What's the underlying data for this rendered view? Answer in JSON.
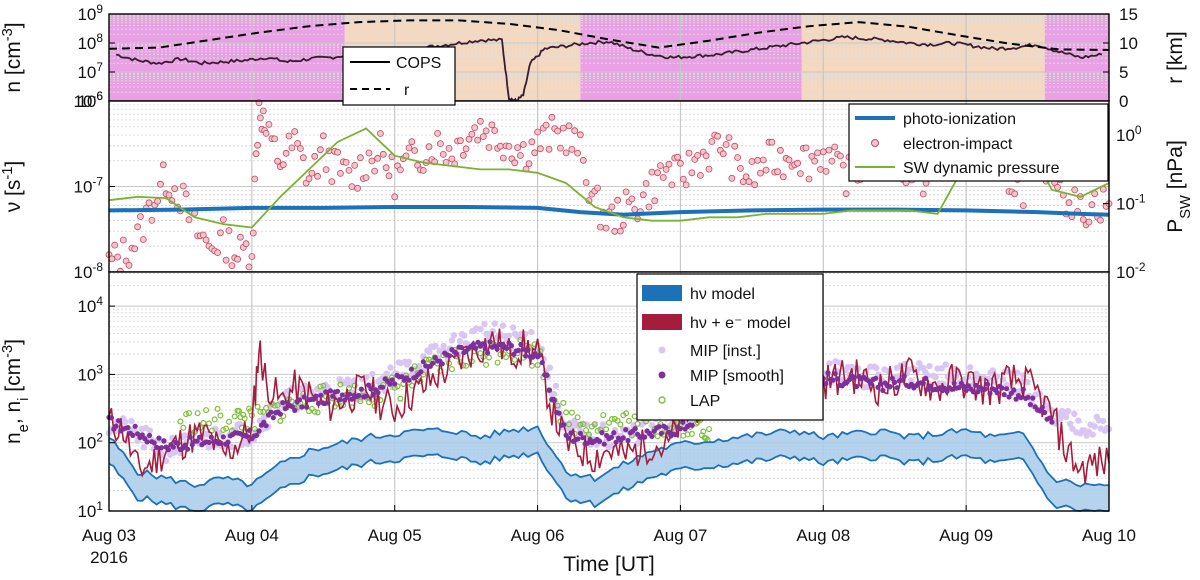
{
  "chart_data": [
    {
      "id": "top",
      "type": "line",
      "ylabel_left": "n [cm^-3]",
      "ylabel_right": "r [km]",
      "ylim_left_log10": [
        6,
        9
      ],
      "ylim_right": [
        0,
        15
      ],
      "yticks_left": [
        "10^6",
        "10^7",
        "10^8",
        "10^9"
      ],
      "yticks_right": [
        "0",
        "5",
        "10",
        "15"
      ],
      "background_bands": [
        {
          "from": 0,
          "to": 1.65,
          "color": "#e9a0e4"
        },
        {
          "from": 1.65,
          "to": 3.3,
          "color": "#f4d8bf"
        },
        {
          "from": 3.3,
          "to": 4.85,
          "color": "#e9a0e4"
        },
        {
          "from": 4.85,
          "to": 6.55,
          "color": "#f4d8bf"
        },
        {
          "from": 6.55,
          "to": 7.0,
          "color": "#e9a0e4"
        }
      ],
      "legend": [
        "COPS",
        "r"
      ],
      "series": [
        {
          "name": "COPS",
          "style": "solid",
          "color": "#3a1b2f",
          "axis": "left",
          "x": [
            0.05,
            0.2,
            0.35,
            0.5,
            0.65,
            0.8,
            0.95,
            1.1,
            1.25,
            1.4,
            1.55,
            1.7,
            1.85,
            2.0,
            2.15,
            2.3,
            2.45,
            2.6,
            2.75,
            2.8,
            2.85,
            2.9,
            2.95,
            3.05,
            3.2,
            3.35,
            3.5,
            3.65,
            3.8,
            3.95,
            4.1,
            4.25,
            4.4,
            4.55,
            4.7,
            4.85,
            5.0,
            5.15,
            5.3,
            5.45,
            5.6,
            5.75,
            5.9,
            6.05,
            6.2,
            6.35,
            6.5,
            6.65,
            6.8,
            6.95
          ],
          "y_log10": [
            7.6,
            7.4,
            7.3,
            7.45,
            7.3,
            7.35,
            7.4,
            7.5,
            7.35,
            7.45,
            7.5,
            7.6,
            7.7,
            7.75,
            7.8,
            7.9,
            8.0,
            8.1,
            8.1,
            6.1,
            6.0,
            6.2,
            7.3,
            7.8,
            7.9,
            8.0,
            8.05,
            7.8,
            7.6,
            7.5,
            7.55,
            7.6,
            7.7,
            7.8,
            7.9,
            8.0,
            8.1,
            8.2,
            8.15,
            8.1,
            8.0,
            7.95,
            8.0,
            7.9,
            7.8,
            7.85,
            7.95,
            7.7,
            7.5,
            7.6
          ]
        },
        {
          "name": "r",
          "style": "dashed",
          "color": "#000000",
          "axis": "right",
          "x": [
            0.0,
            0.35,
            0.7,
            1.05,
            1.4,
            1.75,
            2.1,
            2.45,
            2.8,
            3.15,
            3.5,
            3.85,
            4.2,
            4.55,
            4.9,
            5.25,
            5.6,
            5.95,
            6.3,
            6.65,
            7.0
          ],
          "y": [
            9.0,
            9.2,
            10.5,
            11.8,
            12.9,
            13.6,
            13.9,
            13.9,
            13.3,
            12.2,
            10.6,
            9.2,
            10.4,
            11.8,
            12.9,
            13.6,
            12.8,
            11.3,
            9.9,
            8.9,
            8.8
          ]
        }
      ]
    },
    {
      "id": "middle",
      "type": "line+scatter",
      "ylabel_left": "ν [s^-1]",
      "ylabel_right": "P_SW [nPa]",
      "ylim_left_log10": [
        -8,
        -6
      ],
      "ylim_right_log10": [
        -2,
        0.5
      ],
      "yticks_left": [
        "10^-8",
        "10^-7",
        "10^-6"
      ],
      "yticks_right": [
        "10^-2",
        "10^-1",
        "10^0"
      ],
      "legend": [
        "photo-ionization",
        "electron-impact",
        "SW dynamic pressure"
      ],
      "series": [
        {
          "name": "photo-ionization",
          "color": "#1b72b8",
          "axis": "left",
          "x": [
            0.0,
            0.5,
            1.0,
            1.5,
            2.0,
            2.5,
            3.0,
            3.3,
            3.6,
            4.0,
            4.5,
            5.0,
            5.5,
            6.0,
            6.5,
            6.8,
            7.0
          ],
          "y_log10": [
            -7.28,
            -7.27,
            -7.25,
            -7.25,
            -7.24,
            -7.24,
            -7.25,
            -7.3,
            -7.33,
            -7.3,
            -7.28,
            -7.27,
            -7.27,
            -7.28,
            -7.3,
            -7.32,
            -7.33
          ]
        },
        {
          "name": "electron-impact",
          "color": "#c44a63",
          "fill": "#f2c5cc",
          "axis": "left",
          "x": [
            0.0,
            0.1,
            0.2,
            0.3,
            0.4,
            0.5,
            0.6,
            0.7,
            0.8,
            0.9,
            1.0,
            1.05,
            1.1,
            1.2,
            1.3,
            1.4,
            1.5,
            1.6,
            1.7,
            1.8,
            1.9,
            2.0,
            2.1,
            2.2,
            2.3,
            2.4,
            2.5,
            2.6,
            2.7,
            2.8,
            2.9,
            3.0,
            3.1,
            3.2,
            3.3,
            3.4,
            3.5,
            3.6,
            3.7,
            3.8,
            3.9,
            4.0,
            4.1,
            4.2,
            4.3,
            4.4,
            4.5,
            4.6,
            4.7,
            4.8,
            4.9,
            5.0,
            5.1,
            5.2,
            5.3,
            5.4,
            5.5,
            5.6,
            5.7,
            5.8,
            5.9,
            6.0,
            6.1,
            6.2,
            6.3,
            6.4,
            6.5,
            6.6,
            6.7,
            6.8,
            6.9,
            7.0
          ],
          "y_log10": [
            -7.9,
            -7.8,
            -7.6,
            -7.2,
            -6.9,
            -7.1,
            -7.5,
            -7.7,
            -7.6,
            -7.8,
            -7.7,
            -6.0,
            -6.4,
            -6.7,
            -6.5,
            -6.9,
            -6.6,
            -6.8,
            -6.9,
            -6.7,
            -6.6,
            -6.9,
            -6.7,
            -6.6,
            -6.5,
            -6.6,
            -6.4,
            -6.3,
            -6.4,
            -6.5,
            -6.6,
            -6.5,
            -6.4,
            -6.4,
            -6.6,
            -7.2,
            -7.4,
            -7.3,
            -7.2,
            -7.0,
            -6.8,
            -6.9,
            -6.7,
            -6.6,
            -6.5,
            -6.8,
            -6.9,
            -6.7,
            -6.7,
            -6.6,
            -6.7,
            -6.6,
            -6.8,
            -6.9,
            -6.7,
            -6.6,
            -6.7,
            -6.8,
            -6.9,
            -6.8,
            -6.7,
            -6.6,
            -6.7,
            -6.8,
            -6.9,
            -7.0,
            -6.8,
            -6.7,
            -7.1,
            -7.3,
            -7.2,
            -7.2
          ]
        },
        {
          "name": "SW dynamic pressure",
          "color": "#78b432",
          "axis": "right",
          "x": [
            0.0,
            0.2,
            0.4,
            0.6,
            0.8,
            1.0,
            1.2,
            1.4,
            1.6,
            1.8,
            2.0,
            2.2,
            2.4,
            2.6,
            2.8,
            3.0,
            3.2,
            3.4,
            3.6,
            3.8,
            4.0,
            4.2,
            4.4,
            4.6,
            4.8,
            5.0,
            5.2,
            5.4,
            5.6,
            5.8,
            6.0,
            6.2,
            6.4,
            6.5,
            6.6,
            6.8,
            7.0
          ],
          "y_log10": [
            -0.95,
            -0.9,
            -0.92,
            -1.2,
            -1.3,
            -1.35,
            -0.9,
            -0.5,
            -0.1,
            0.1,
            -0.3,
            -0.4,
            -0.45,
            -0.5,
            -0.5,
            -0.55,
            -0.7,
            -1.05,
            -1.2,
            -1.25,
            -1.25,
            -1.2,
            -1.2,
            -1.15,
            -1.15,
            -1.15,
            -1.1,
            -1.1,
            -1.1,
            -1.15,
            -0.4,
            -0.4,
            -0.4,
            -0.4,
            -0.8,
            -0.9,
            -0.7
          ]
        }
      ]
    },
    {
      "id": "bottom",
      "type": "line+scatter",
      "ylabel_left": "n_e, n_i [cm^-3]",
      "ylim_left_log10": [
        1,
        4.5
      ],
      "yticks_left": [
        "10^1",
        "10^2",
        "10^3",
        "10^4"
      ],
      "xlim": [
        0,
        7
      ],
      "xticks": [
        "Aug 03",
        "Aug 04",
        "Aug 05",
        "Aug 06",
        "Aug 07",
        "Aug 08",
        "Aug 09",
        "Aug 10"
      ],
      "xlabel": "Time [UT]",
      "xlabel_extra": "2016",
      "legend": [
        "hν model",
        "hν + e⁻ model",
        "MIP [inst.]",
        "MIP [smooth]",
        "LAP"
      ],
      "series": [
        {
          "name": "hν model",
          "color": "#1b72b8",
          "band": "#a9cbeb",
          "x": [
            0.0,
            0.2,
            0.4,
            0.6,
            0.8,
            1.0,
            1.2,
            1.4,
            1.6,
            1.8,
            2.0,
            2.2,
            2.4,
            2.6,
            2.8,
            3.0,
            3.2,
            3.4,
            3.6,
            3.8,
            4.0,
            4.2,
            4.4,
            4.6,
            4.8,
            5.0,
            5.2,
            5.4,
            5.6,
            5.8,
            6.0,
            6.2,
            6.4,
            6.6,
            6.8,
            7.0
          ],
          "y_log10": [
            1.9,
            1.4,
            1.3,
            1.2,
            1.3,
            1.2,
            1.5,
            1.7,
            1.8,
            1.9,
            1.95,
            2.0,
            2.0,
            1.9,
            2.0,
            2.05,
            1.4,
            1.3,
            1.5,
            1.7,
            1.8,
            1.85,
            1.9,
            1.95,
            2.0,
            1.9,
            1.95,
            2.0,
            1.9,
            1.95,
            2.0,
            1.9,
            1.95,
            1.3,
            1.2,
            1.2
          ]
        },
        {
          "name": "hν + e⁻ model",
          "color": "#a51d3c",
          "x": [
            0.0,
            0.1,
            0.2,
            0.3,
            0.4,
            0.5,
            0.6,
            0.7,
            0.8,
            0.9,
            1.0,
            1.05,
            1.1,
            1.2,
            1.3,
            1.4,
            1.5,
            1.6,
            1.7,
            1.8,
            1.9,
            2.0,
            2.1,
            2.2,
            2.3,
            2.4,
            2.5,
            2.6,
            2.7,
            2.8,
            2.9,
            3.0,
            3.1,
            3.2,
            3.3,
            3.4,
            3.5,
            3.6,
            3.7,
            3.8,
            3.9,
            4.0,
            4.1,
            4.2,
            4.3,
            4.4,
            4.5,
            4.6,
            4.7,
            4.8,
            4.9,
            5.0,
            5.1,
            5.2,
            5.3,
            5.4,
            5.5,
            5.6,
            5.7,
            5.8,
            5.9,
            6.0,
            6.1,
            6.2,
            6.3,
            6.4,
            6.5,
            6.6,
            6.7,
            6.8,
            6.9,
            7.0
          ],
          "y_log10": [
            2.3,
            2.2,
            1.6,
            1.7,
            1.9,
            2.0,
            2.1,
            2.1,
            1.8,
            2.0,
            2.2,
            3.4,
            2.9,
            2.6,
            2.8,
            2.7,
            2.5,
            2.6,
            2.7,
            2.8,
            2.6,
            2.5,
            2.7,
            2.8,
            3.0,
            3.1,
            3.3,
            3.4,
            3.5,
            3.3,
            3.4,
            3.3,
            2.5,
            2.0,
            1.9,
            1.8,
            1.9,
            1.8,
            1.9,
            2.0,
            1.9,
            2.3,
            2.5,
            2.8,
            2.9,
            3.1,
            3.0,
            2.9,
            3.0,
            3.1,
            3.0,
            2.9,
            2.95,
            3.0,
            2.9,
            2.8,
            2.9,
            3.0,
            2.9,
            2.8,
            2.9,
            2.9,
            2.8,
            2.8,
            2.9,
            2.9,
            2.7,
            2.4,
            1.9,
            1.6,
            1.7,
            1.7
          ]
        },
        {
          "name": "MIP [inst.]",
          "color": "#d9c6f2",
          "x": [
            0.0,
            0.2,
            0.4,
            0.6,
            0.8,
            1.0,
            1.2,
            1.4,
            1.6,
            1.8,
            2.0,
            2.2,
            2.4,
            2.6,
            2.8,
            3.0,
            3.2,
            3.4,
            3.6,
            3.8,
            4.0,
            4.2,
            4.4,
            4.6,
            4.8,
            5.0,
            5.2,
            5.4,
            5.6,
            5.8,
            6.0,
            6.2,
            6.4,
            6.6,
            6.8,
            7.0
          ],
          "y_log10": [
            2.3,
            2.1,
            1.9,
            2.0,
            2.1,
            2.15,
            2.6,
            2.7,
            2.8,
            2.8,
            3.0,
            3.2,
            3.4,
            3.6,
            3.55,
            3.5,
            2.2,
            2.1,
            2.1,
            2.2,
            2.3,
            2.6,
            2.8,
            3.0,
            3.1,
            3.05,
            3.0,
            2.95,
            3.0,
            3.0,
            2.95,
            2.9,
            2.85,
            2.4,
            2.3,
            2.2
          ]
        },
        {
          "name": "MIP [smooth]",
          "color": "#7e2f9a",
          "x": [
            0.0,
            0.2,
            0.4,
            0.6,
            0.8,
            1.0,
            1.2,
            1.4,
            1.6,
            1.8,
            2.0,
            2.2,
            2.4,
            2.6,
            2.8,
            3.0,
            3.2,
            3.4,
            3.6,
            3.8,
            4.0,
            4.2,
            4.4,
            4.6,
            4.8,
            5.0,
            5.2,
            5.4,
            5.6,
            5.8,
            6.0,
            6.2,
            6.4,
            6.6
          ],
          "y_log10": [
            2.3,
            2.15,
            1.95,
            2.0,
            2.05,
            2.1,
            2.5,
            2.6,
            2.7,
            2.75,
            2.9,
            3.1,
            3.3,
            3.4,
            3.4,
            3.3,
            2.1,
            2.05,
            2.1,
            2.15,
            2.2,
            2.5,
            2.7,
            2.9,
            3.0,
            2.95,
            2.9,
            2.85,
            2.9,
            2.85,
            2.8,
            2.8,
            2.7,
            2.3
          ]
        },
        {
          "name": "LAP",
          "color": "#7fbf3a",
          "x": [
            0.5,
            0.7,
            0.9,
            1.0,
            1.2,
            1.4,
            1.6,
            1.8,
            2.0,
            2.2,
            2.4,
            2.6,
            2.8,
            3.0,
            3.2,
            3.4,
            3.6,
            3.8,
            4.0,
            4.1,
            4.2
          ],
          "y_log10": [
            2.3,
            2.3,
            2.35,
            2.3,
            2.5,
            2.6,
            2.7,
            2.7,
            2.8,
            3.0,
            3.2,
            3.3,
            3.4,
            3.3,
            2.3,
            2.3,
            2.3,
            2.25,
            2.3,
            2.3,
            2.2
          ]
        }
      ]
    }
  ]
}
